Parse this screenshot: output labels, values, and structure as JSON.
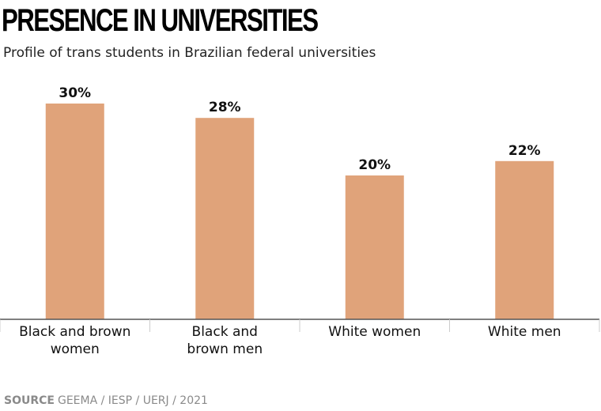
{
  "header": {
    "title": "PRESENCE IN UNIVERSITIES",
    "subtitle": "Profile of trans students in Brazilian federal universities"
  },
  "footer": {
    "source_label": "SOURCE",
    "source_text": "GEEMA / IESP / UERJ / 2021"
  },
  "colors": {
    "bar": "#e0a37a",
    "axis": "#555555",
    "text": "#111111"
  },
  "chart_data": {
    "type": "bar",
    "title": "PRESENCE IN UNIVERSITIES",
    "subtitle": "Profile of trans students in Brazilian federal universities",
    "categories": [
      [
        "Black and brown",
        "women"
      ],
      [
        "Black and",
        "brown men"
      ],
      [
        "White women"
      ],
      [
        "White men"
      ]
    ],
    "values": [
      30,
      28,
      20,
      22
    ],
    "value_labels": [
      "30%",
      "28%",
      "20%",
      "22%"
    ],
    "unit": "%",
    "xlabel": "",
    "ylabel": "",
    "ylim": [
      0,
      30
    ],
    "grid": false,
    "legend": "none"
  }
}
